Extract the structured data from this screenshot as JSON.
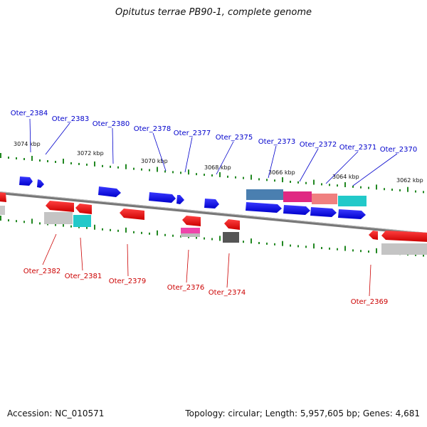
{
  "title": "Opitutus terrae PB90-1, complete genome",
  "footer": {
    "accession": "Accession: NC_010571",
    "topology": "Topology: circular; Length: 5,957,605 bp; Genes: 4,681"
  },
  "colors": {
    "forward_gene": "#0000ee",
    "reverse_gene": "#ee0000",
    "forward_label": "#0000cc",
    "reverse_label": "#cc0000",
    "backbone": "#777777",
    "ticks": "#228822",
    "tick_label": "#111111"
  },
  "kbp_labels": [
    "3074 kbp",
    "3072 kbp",
    "3070 kbp",
    "3068 kbp",
    "3066 kbp",
    "3064 kbp",
    "3062 kbp"
  ],
  "gene_labels": {
    "forward": [
      "Oter_2384",
      "Oter_2383",
      "Oter_2380",
      "Oter_2378",
      "Oter_2377",
      "Oter_2375",
      "Oter_2373",
      "Oter_2372",
      "Oter_2371",
      "Oter_2370"
    ],
    "reverse": [
      "Oter_2382",
      "Oter_2381",
      "Oter_2379",
      "Oter_2376",
      "Oter_2374",
      "Oter_2369"
    ]
  }
}
